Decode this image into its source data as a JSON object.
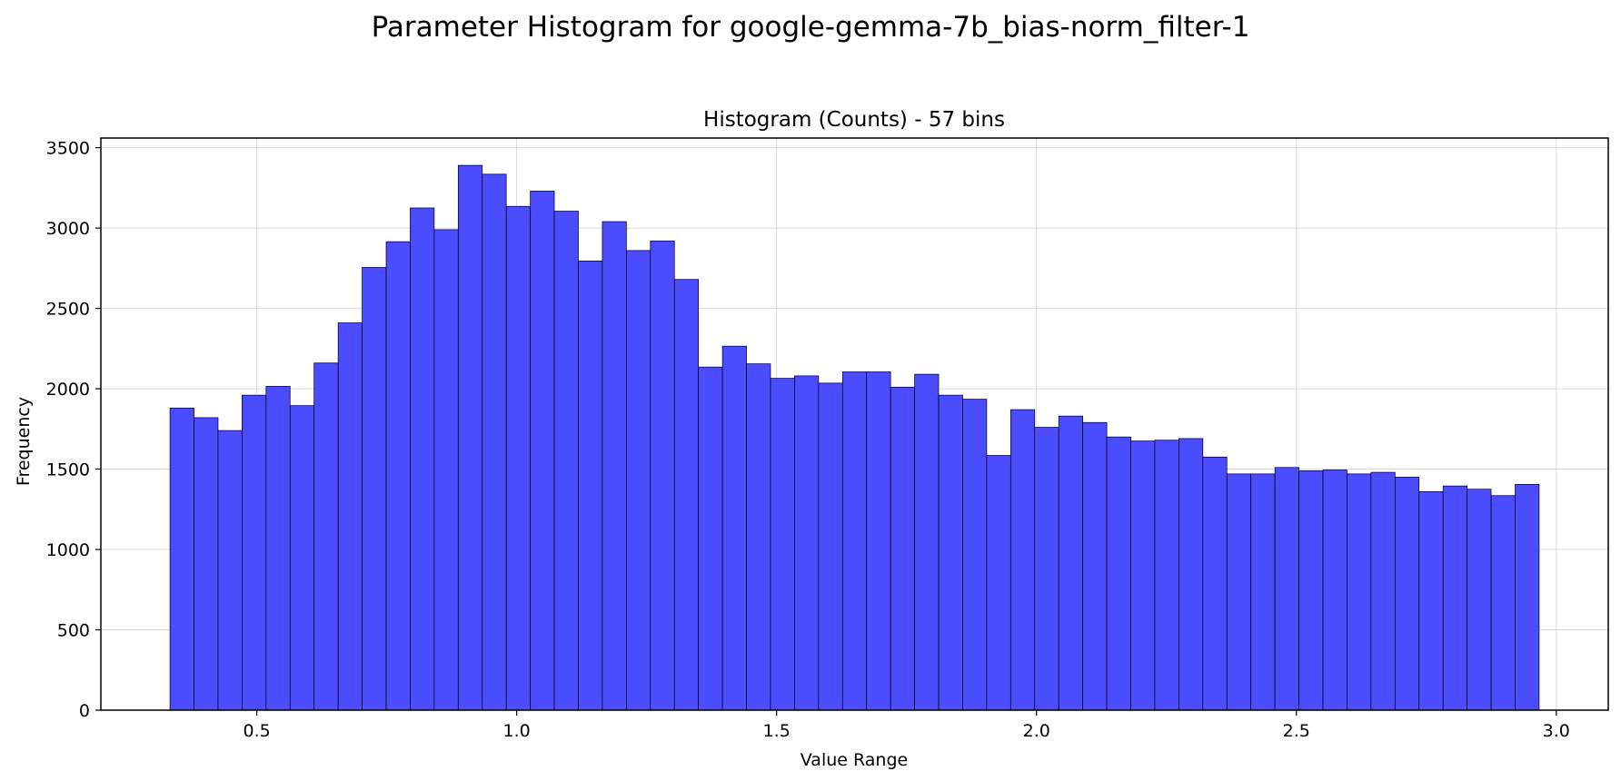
{
  "suptitle": "Parameter Histogram for google-gemma-7b_bias-norm_filter-1",
  "chart_data": {
    "type": "bar",
    "title": "Histogram (Counts) - 57 bins",
    "xlabel": "Value Range",
    "ylabel": "Frequency",
    "xlim": [
      0.2,
      3.1
    ],
    "ylim": [
      0,
      3560
    ],
    "x_ticks": [
      0.5,
      1.0,
      1.5,
      2.0,
      2.5,
      3.0
    ],
    "x_tick_labels": [
      "0.5",
      "1.0",
      "1.5",
      "2.0",
      "2.5",
      "3.0"
    ],
    "y_ticks": [
      0,
      500,
      1000,
      1500,
      2000,
      2500,
      3000,
      3500
    ],
    "y_tick_labels": [
      "0",
      "500",
      "1000",
      "1500",
      "2000",
      "2500",
      "3000",
      "3500"
    ],
    "bin_start": 0.333,
    "bin_end": 2.967,
    "bins": 57,
    "values": [
      1880,
      1820,
      1740,
      1960,
      2015,
      1895,
      2160,
      2410,
      2755,
      2915,
      3125,
      2990,
      3390,
      3335,
      3135,
      3230,
      3105,
      2795,
      3040,
      2860,
      2920,
      2680,
      2135,
      2265,
      2155,
      2065,
      2080,
      2035,
      2105,
      2105,
      2010,
      2090,
      1960,
      1935,
      1585,
      1870,
      1760,
      1830,
      1790,
      1700,
      1675,
      1680,
      1690,
      1575,
      1470,
      1470,
      1510,
      1490,
      1495,
      1470,
      1480,
      1450,
      1360,
      1395,
      1375,
      1335,
      1405
    ],
    "grid": true,
    "bar_color": "#4b4bff",
    "edge_color": "#000000"
  }
}
